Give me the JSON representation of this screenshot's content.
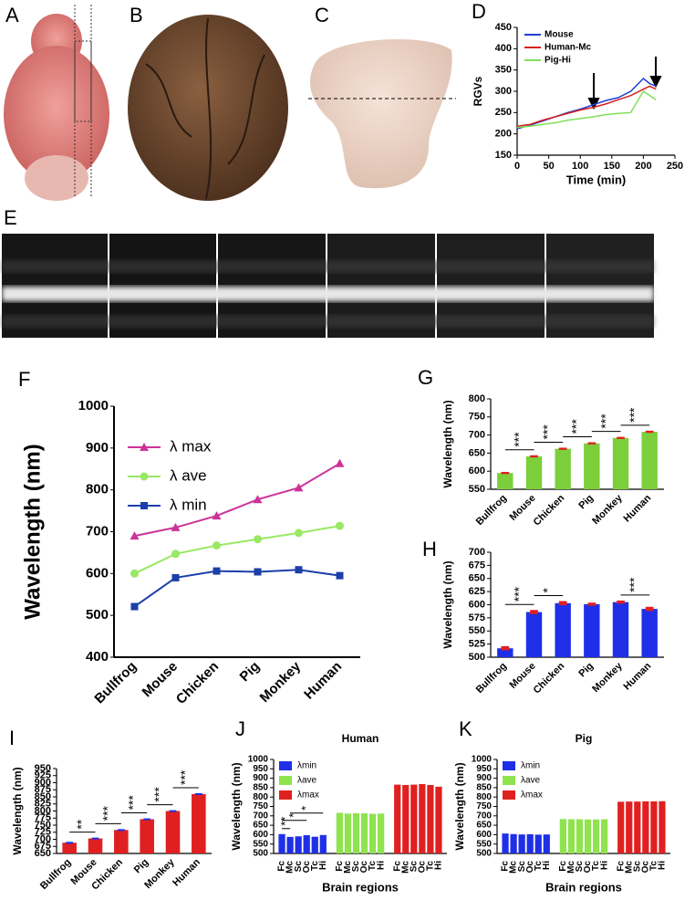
{
  "figure": {
    "photo_labels": [
      "A",
      "B",
      "C",
      "E"
    ]
  },
  "chart_data": [
    {
      "type": "line",
      "panel": "D",
      "xlabel": "Time (min)",
      "ylabel": "RGVs",
      "x": [
        0,
        20,
        40,
        60,
        80,
        100,
        120,
        140,
        160,
        180,
        200,
        210,
        220
      ],
      "xlim": [
        0,
        250
      ],
      "xticks": [
        0,
        50,
        100,
        150,
        200,
        250
      ],
      "ylim": [
        150,
        450
      ],
      "yticks": [
        150,
        200,
        250,
        300,
        350,
        400,
        450
      ],
      "series": [
        {
          "name": "Mouse",
          "color": "#1f3fd6",
          "values": [
            212,
            220,
            230,
            240,
            250,
            258,
            268,
            278,
            285,
            300,
            330,
            318,
            312
          ]
        },
        {
          "name": "Human-Mc",
          "color": "#d62020",
          "values": [
            218,
            222,
            232,
            240,
            248,
            256,
            262,
            270,
            280,
            290,
            305,
            312,
            305
          ]
        },
        {
          "name": "Pig-Hi",
          "color": "#7fe05a",
          "values": [
            215,
            218,
            222,
            226,
            232,
            236,
            240,
            245,
            248,
            250,
            300,
            290,
            280
          ]
        }
      ]
    },
    {
      "type": "line",
      "panel": "F",
      "ylabel": "Wavelength (nm)",
      "categories": [
        "Bullfrog",
        "Mouse",
        "Chicken",
        "Pig",
        "Monkey",
        "Human"
      ],
      "ylim": [
        400,
        1000
      ],
      "yticks": [
        400,
        500,
        600,
        700,
        800,
        900,
        1000
      ],
      "series": [
        {
          "name": "λ max",
          "color": "#cc3399",
          "marker": "triangle",
          "values": [
            690,
            710,
            738,
            777,
            805,
            863
          ]
        },
        {
          "name": "λ ave",
          "color": "#99e866",
          "marker": "circle",
          "values": [
            600,
            647,
            667,
            682,
            697,
            714
          ]
        },
        {
          "name": "λ min",
          "color": "#1a3fa8",
          "marker": "square",
          "values": [
            521,
            590,
            606,
            604,
            609,
            595
          ]
        }
      ]
    },
    {
      "type": "bar",
      "panel": "G",
      "ylabel": "Wavelength (nm)",
      "color": "#7ccf3a",
      "error_color": "#e02020",
      "categories": [
        "Bullfrog",
        "Mouse",
        "Chicken",
        "Pig",
        "Monkey",
        "Human"
      ],
      "values": [
        595,
        641,
        662,
        677,
        692,
        709
      ],
      "errors": [
        3,
        3,
        3,
        3,
        3,
        3
      ],
      "ylim": [
        550,
        800
      ],
      "yticks": [
        550,
        600,
        650,
        700,
        750,
        800
      ],
      "significance": [
        {
          "between": [
            "Bullfrog",
            "Mouse"
          ],
          "label": "***"
        },
        {
          "between": [
            "Mouse",
            "Chicken"
          ],
          "label": "***"
        },
        {
          "between": [
            "Chicken",
            "Pig"
          ],
          "label": "***"
        },
        {
          "between": [
            "Pig",
            "Monkey"
          ],
          "label": "***"
        },
        {
          "between": [
            "Monkey",
            "Human"
          ],
          "label": "***"
        }
      ]
    },
    {
      "type": "bar",
      "panel": "H",
      "ylabel": "Wavelength (nm)",
      "color": "#1f2fe8",
      "error_color": "#e02020",
      "categories": [
        "Bullfrog",
        "Mouse",
        "Chicken",
        "Pig",
        "Monkey",
        "Human"
      ],
      "values": [
        517,
        586,
        603,
        601,
        605,
        592
      ],
      "errors": [
        4,
        4,
        4,
        3,
        3,
        4
      ],
      "ylim": [
        500,
        700
      ],
      "yticks": [
        500,
        525,
        550,
        575,
        600,
        625,
        650,
        675,
        700
      ],
      "significance": [
        {
          "between": [
            "Bullfrog",
            "Mouse"
          ],
          "label": "***"
        },
        {
          "between": [
            "Mouse",
            "Chicken"
          ],
          "label": "*"
        },
        {
          "between": [
            "Monkey",
            "Human"
          ],
          "label": "***"
        }
      ]
    },
    {
      "type": "bar",
      "panel": "I",
      "ylabel": "Wavelength (nm)",
      "color": "#e02020",
      "error_color": "#1f2fe8",
      "categories": [
        "Bullfrog",
        "Mouse",
        "Chicken",
        "Pig",
        "Monkey",
        "Human"
      ],
      "values": [
        688,
        703,
        733,
        771,
        800,
        860
      ],
      "errors": [
        3,
        3,
        3,
        3,
        3,
        3
      ],
      "ylim": [
        650,
        950
      ],
      "yticks": [
        650,
        675,
        700,
        725,
        750,
        775,
        800,
        825,
        850,
        875,
        900,
        925,
        950
      ],
      "significance": [
        {
          "between": [
            "Bullfrog",
            "Mouse"
          ],
          "label": "**"
        },
        {
          "between": [
            "Mouse",
            "Chicken"
          ],
          "label": "***"
        },
        {
          "between": [
            "Chicken",
            "Pig"
          ],
          "label": "***"
        },
        {
          "between": [
            "Pig",
            "Monkey"
          ],
          "label": "***"
        },
        {
          "between": [
            "Monkey",
            "Human"
          ],
          "label": "***"
        }
      ]
    },
    {
      "type": "grouped-bar",
      "panel": "J",
      "title": "Human",
      "xlabel": "Brain regions",
      "ylabel": "Wavelength (nm)",
      "categories": [
        "Fc",
        "Mc",
        "Sc",
        "Oc",
        "Tc",
        "Hi"
      ],
      "ylim": [
        500,
        1000
      ],
      "yticks": [
        500,
        550,
        600,
        650,
        700,
        750,
        800,
        850,
        900,
        950,
        1000
      ],
      "series": [
        {
          "name": "λmin",
          "color": "#1f2fe8",
          "values": [
            603,
            588,
            591,
            597,
            589,
            598
          ]
        },
        {
          "name": "λave",
          "color": "#8fe34f",
          "values": [
            716,
            712,
            714,
            714,
            711,
            712
          ]
        },
        {
          "name": "λmax",
          "color": "#e02020",
          "values": [
            866,
            864,
            866,
            869,
            864,
            855
          ]
        }
      ],
      "significance": [
        {
          "between": [
            "Fc",
            "Mc"
          ],
          "label": "**"
        },
        {
          "between": [
            "Fc",
            "Oc"
          ],
          "label": "*"
        },
        {
          "between": [
            "Mc",
            "Hi"
          ],
          "label": "*"
        }
      ]
    },
    {
      "type": "grouped-bar",
      "panel": "K",
      "title": "Pig",
      "xlabel": "Brain regions",
      "ylabel": "Wavelength (nm)",
      "categories": [
        "Fc",
        "Mc",
        "Sc",
        "Oc",
        "Tc",
        "Hi"
      ],
      "ylim": [
        500,
        1000
      ],
      "yticks": [
        500,
        550,
        600,
        650,
        700,
        750,
        800,
        850,
        900,
        950,
        1000
      ],
      "series": [
        {
          "name": "λmin",
          "color": "#1f2fe8",
          "values": [
            606,
            603,
            601,
            602,
            600,
            601
          ]
        },
        {
          "name": "λave",
          "color": "#8fe34f",
          "values": [
            683,
            682,
            682,
            681,
            681,
            682
          ]
        },
        {
          "name": "λmax",
          "color": "#e02020",
          "values": [
            775,
            776,
            776,
            777,
            777,
            778
          ]
        }
      ]
    }
  ]
}
